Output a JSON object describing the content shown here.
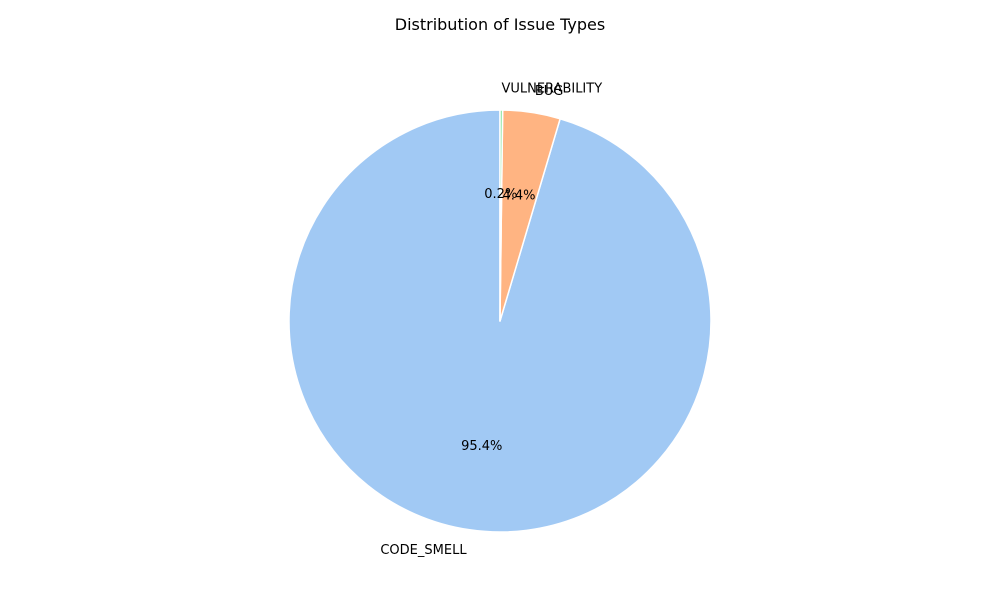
{
  "chart_data": {
    "type": "pie",
    "title": "Distribution of Issue Types",
    "start_angle_deg": 90,
    "direction": "counterclockwise",
    "slices": [
      {
        "label": "CODE_SMELL",
        "value": 95.4,
        "pct_label": "95.4%",
        "color": "#a1c9f4"
      },
      {
        "label": "BUG",
        "value": 4.4,
        "pct_label": "4.4%",
        "color": "#ffb482"
      },
      {
        "label": "VULNERABILITY",
        "value": 0.2,
        "pct_label": "0.2%",
        "color": "#8de5a1"
      }
    ],
    "edge_color": "#ffffff",
    "legend": "none",
    "grid": false
  }
}
